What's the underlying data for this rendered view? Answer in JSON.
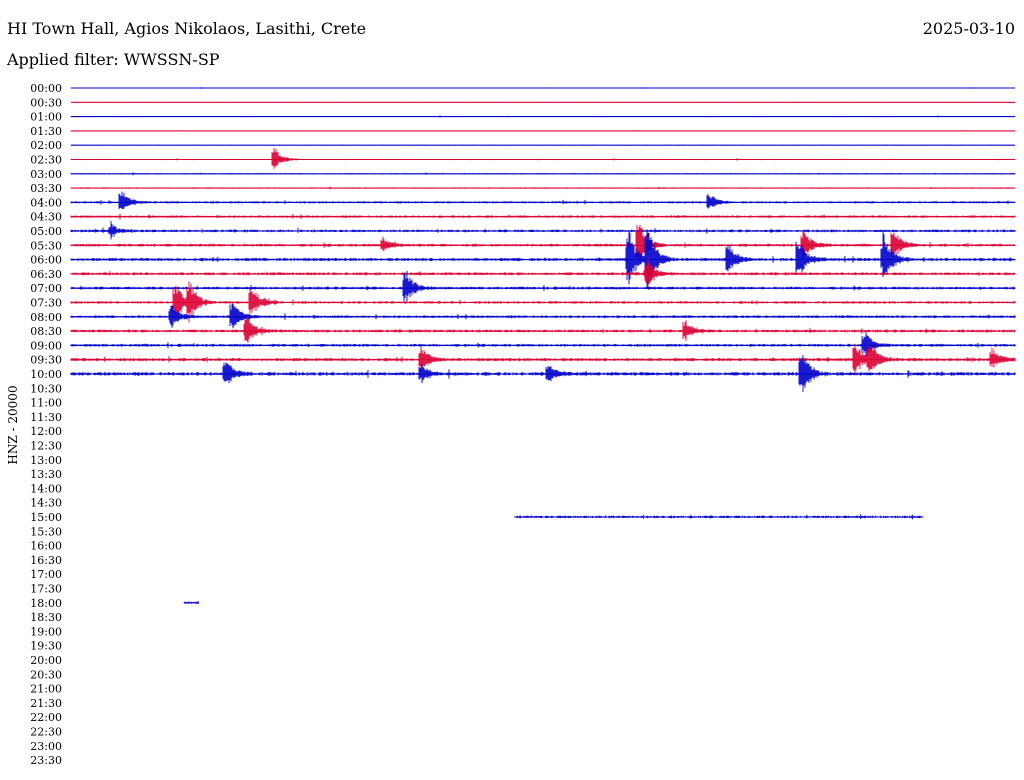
{
  "header": {
    "station": "HI Town Hall, Agios Nikolaos, Lasithi, Crete",
    "date": "2025-03-10",
    "filter": "Applied filter: WWSSN-SP"
  },
  "chart_data": {
    "type": "line",
    "title": "HI Town Hall, Agios Nikolaos, Lasithi, Crete",
    "ylabel": "HNZ - 20000",
    "colors": [
      "#0000cc",
      "#dd0033"
    ],
    "rows": [
      {
        "time": "00:00",
        "start": 0.0,
        "end": 1.0,
        "activity": 0.15
      },
      {
        "time": "00:30",
        "start": 0.0,
        "end": 1.0,
        "activity": 0.15
      },
      {
        "time": "01:00",
        "start": 0.0,
        "end": 1.0,
        "activity": 0.2
      },
      {
        "time": "01:30",
        "start": 0.0,
        "end": 1.0,
        "activity": 0.15
      },
      {
        "time": "02:00",
        "start": 0.0,
        "end": 1.0,
        "activity": 0.15
      },
      {
        "time": "02:30",
        "start": 0.0,
        "end": 1.0,
        "activity": 0.25
      },
      {
        "time": "03:00",
        "start": 0.0,
        "end": 1.0,
        "activity": 0.25
      },
      {
        "time": "03:30",
        "start": 0.0,
        "end": 1.0,
        "activity": 0.3
      },
      {
        "time": "04:00",
        "start": 0.0,
        "end": 1.0,
        "activity": 0.5
      },
      {
        "time": "04:30",
        "start": 0.0,
        "end": 1.0,
        "activity": 0.55
      },
      {
        "time": "05:00",
        "start": 0.0,
        "end": 1.0,
        "activity": 0.6
      },
      {
        "time": "05:30",
        "start": 0.0,
        "end": 1.0,
        "activity": 0.65
      },
      {
        "time": "06:00",
        "start": 0.0,
        "end": 1.0,
        "activity": 0.75
      },
      {
        "time": "06:30",
        "start": 0.0,
        "end": 1.0,
        "activity": 0.65
      },
      {
        "time": "07:00",
        "start": 0.0,
        "end": 1.0,
        "activity": 0.65
      },
      {
        "time": "07:30",
        "start": 0.0,
        "end": 1.0,
        "activity": 0.6
      },
      {
        "time": "08:00",
        "start": 0.0,
        "end": 1.0,
        "activity": 0.6
      },
      {
        "time": "08:30",
        "start": 0.0,
        "end": 1.0,
        "activity": 0.65
      },
      {
        "time": "09:00",
        "start": 0.0,
        "end": 1.0,
        "activity": 0.65
      },
      {
        "time": "09:30",
        "start": 0.0,
        "end": 1.0,
        "activity": 0.75
      },
      {
        "time": "10:00",
        "start": 0.0,
        "end": 1.0,
        "activity": 0.8
      },
      {
        "time": "10:30"
      },
      {
        "time": "11:00"
      },
      {
        "time": "11:30"
      },
      {
        "time": "12:00"
      },
      {
        "time": "12:30"
      },
      {
        "time": "13:00"
      },
      {
        "time": "13:30"
      },
      {
        "time": "14:00"
      },
      {
        "time": "14:30"
      },
      {
        "time": "15:00",
        "start": 0.47,
        "end": 0.903,
        "activity": 0.6
      },
      {
        "time": "15:30"
      },
      {
        "time": "16:00"
      },
      {
        "time": "16:30"
      },
      {
        "time": "17:00"
      },
      {
        "time": "17:30"
      },
      {
        "time": "18:00",
        "start": 0.12,
        "end": 0.135,
        "activity": 0.5
      },
      {
        "time": "18:30"
      },
      {
        "time": "19:00"
      },
      {
        "time": "19:30"
      },
      {
        "time": "20:00"
      },
      {
        "time": "20:30"
      },
      {
        "time": "21:00"
      },
      {
        "time": "21:30"
      },
      {
        "time": "22:00"
      },
      {
        "time": "22:30"
      },
      {
        "time": "23:00"
      },
      {
        "time": "23:30"
      }
    ],
    "events": [
      {
        "row": 5,
        "pos": 0.215,
        "amp": 1.0
      },
      {
        "row": 8,
        "pos": 0.052,
        "amp": 1.0
      },
      {
        "row": 8,
        "pos": 0.675,
        "amp": 0.8
      },
      {
        "row": 10,
        "pos": 0.042,
        "amp": 0.6
      },
      {
        "row": 11,
        "pos": 0.33,
        "amp": 0.6
      },
      {
        "row": 11,
        "pos": 0.6,
        "amp": 2.2
      },
      {
        "row": 11,
        "pos": 0.775,
        "amp": 1.4
      },
      {
        "row": 11,
        "pos": 0.87,
        "amp": 1.4
      },
      {
        "row": 12,
        "pos": 0.59,
        "amp": 2.4
      },
      {
        "row": 12,
        "pos": 0.61,
        "amp": 2.8
      },
      {
        "row": 12,
        "pos": 0.695,
        "amp": 1.4
      },
      {
        "row": 12,
        "pos": 0.77,
        "amp": 1.8
      },
      {
        "row": 12,
        "pos": 0.86,
        "amp": 2.2
      },
      {
        "row": 13,
        "pos": 0.61,
        "amp": 1.2
      },
      {
        "row": 14,
        "pos": 0.353,
        "amp": 1.6
      },
      {
        "row": 15,
        "pos": 0.11,
        "amp": 1.8
      },
      {
        "row": 15,
        "pos": 0.125,
        "amp": 1.6
      },
      {
        "row": 15,
        "pos": 0.19,
        "amp": 1.4
      },
      {
        "row": 16,
        "pos": 0.105,
        "amp": 1.2
      },
      {
        "row": 16,
        "pos": 0.17,
        "amp": 1.4
      },
      {
        "row": 17,
        "pos": 0.185,
        "amp": 1.2
      },
      {
        "row": 17,
        "pos": 0.65,
        "amp": 0.9
      },
      {
        "row": 18,
        "pos": 0.84,
        "amp": 1.2
      },
      {
        "row": 19,
        "pos": 0.37,
        "amp": 1.0
      },
      {
        "row": 19,
        "pos": 0.83,
        "amp": 1.4
      },
      {
        "row": 19,
        "pos": 0.845,
        "amp": 1.4
      },
      {
        "row": 19,
        "pos": 0.975,
        "amp": 0.8
      },
      {
        "row": 20,
        "pos": 0.163,
        "amp": 1.2
      },
      {
        "row": 20,
        "pos": 0.37,
        "amp": 0.8
      },
      {
        "row": 20,
        "pos": 0.505,
        "amp": 0.8
      },
      {
        "row": 20,
        "pos": 0.773,
        "amp": 2.2
      }
    ]
  }
}
